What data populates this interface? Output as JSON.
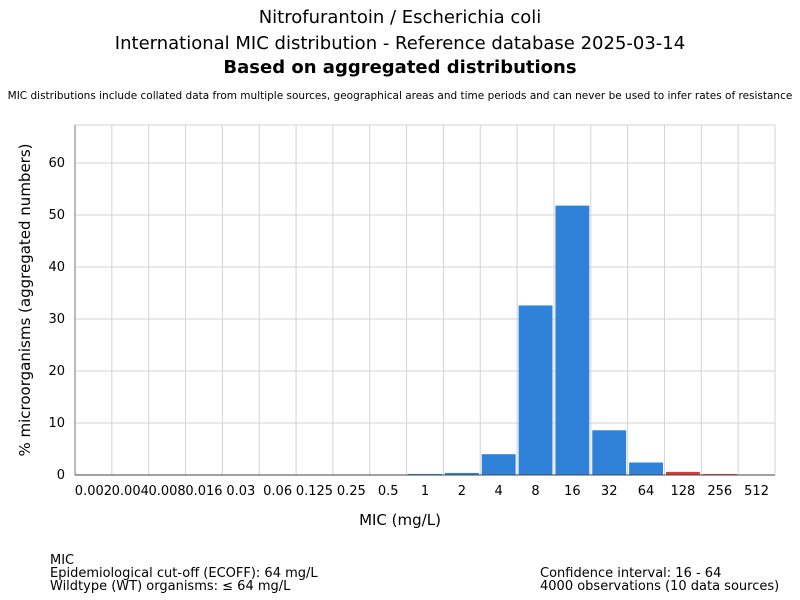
{
  "title": {
    "line1": "Nitrofurantoin / Escherichia coli",
    "line2": "International MIC distribution - Reference database 2025-03-14",
    "line3": "Based on aggregated distributions"
  },
  "disclaimer": "MIC distributions include collated data from multiple sources, geographical areas and time periods and can never be used to infer rates of resistance",
  "footer_left": {
    "line1": "MIC",
    "line2": "Epidemiological cut-off (ECOFF): 64 mg/L",
    "line3": "Wildtype (WT) organisms: ≤ 64 mg/L"
  },
  "footer_right": {
    "line1": "Confidence interval: 16 - 64",
    "line2": "4000 observations (10 data sources)"
  },
  "colors": {
    "wildtype": "#2f82d8",
    "non_wildtype": "#d83b3b",
    "grid": "#d3d3d3",
    "axis": "#777777"
  },
  "chart_data": {
    "type": "bar",
    "xlabel": "MIC (mg/L)",
    "ylabel": "% microorganisms (aggregated numbers)",
    "categories": [
      "0.002",
      "0.004",
      "0.008",
      "0.016",
      "0.03",
      "0.06",
      "0.125",
      "0.25",
      "0.5",
      "1",
      "2",
      "4",
      "8",
      "16",
      "32",
      "64",
      "128",
      "256",
      "512"
    ],
    "values": [
      0,
      0,
      0,
      0,
      0,
      0,
      0,
      0,
      0,
      0.2,
      0.4,
      4.0,
      32.6,
      51.8,
      8.6,
      2.4,
      0.6,
      0.2,
      0
    ],
    "bar_class": [
      "wt",
      "wt",
      "wt",
      "wt",
      "wt",
      "wt",
      "wt",
      "wt",
      "wt",
      "wt",
      "wt",
      "wt",
      "wt",
      "wt",
      "wt",
      "wt",
      "non-wt",
      "non-wt",
      "non-wt"
    ],
    "yticks": [
      0,
      10,
      20,
      30,
      40,
      50,
      60
    ],
    "ylim": [
      0,
      67.3
    ],
    "grid": true
  }
}
